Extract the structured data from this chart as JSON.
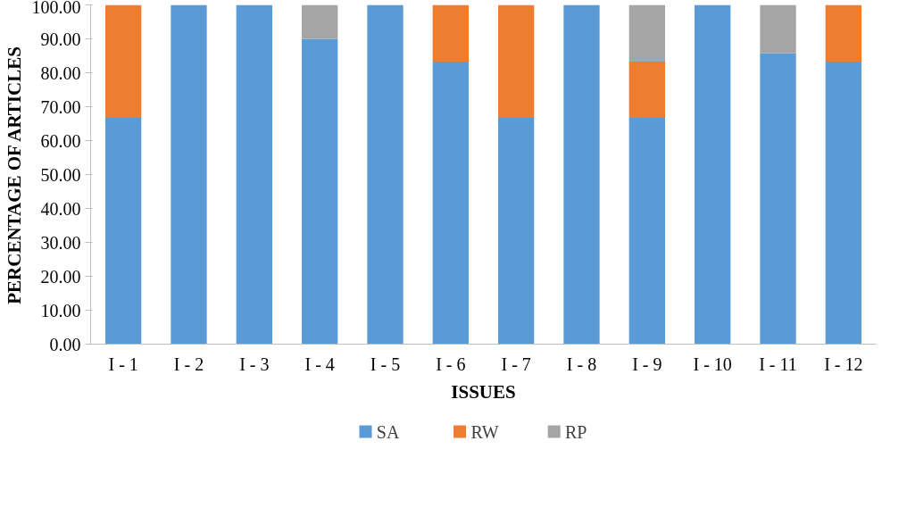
{
  "chart_data": {
    "type": "bar",
    "stacked": true,
    "xlabel": "ISSUES",
    "ylabel": "PERCENTAGE OF ARTICLES",
    "categories": [
      "I - 1",
      "I - 2",
      "I - 3",
      "I - 4",
      "I - 5",
      "I - 6",
      "I - 7",
      "I - 8",
      "I - 9",
      "I - 10",
      "I - 11",
      "I - 12"
    ],
    "series": [
      {
        "name": "SA",
        "color": "#5b9bd5",
        "values": [
          66.7,
          100,
          100,
          90,
          100,
          83.3,
          66.7,
          100,
          66.7,
          100,
          85.7,
          83.3
        ]
      },
      {
        "name": "RW",
        "color": "#ed7d31",
        "values": [
          33.3,
          0,
          0,
          0,
          0,
          16.7,
          33.3,
          0,
          16.6,
          0,
          0,
          16.7
        ]
      },
      {
        "name": "RP",
        "color": "#a5a5a5",
        "values": [
          0,
          0,
          0,
          10,
          0,
          0,
          0,
          0,
          16.7,
          0,
          14.3,
          0
        ]
      }
    ],
    "ylim": [
      0,
      100
    ],
    "yticks": [
      {
        "value": 0,
        "label": "0.00"
      },
      {
        "value": 10,
        "label": "10.00"
      },
      {
        "value": 20,
        "label": "20.00"
      },
      {
        "value": 30,
        "label": "30.00"
      },
      {
        "value": 40,
        "label": "40.00"
      },
      {
        "value": 50,
        "label": "50.00"
      },
      {
        "value": 60,
        "label": "60.00"
      },
      {
        "value": 70,
        "label": "70.00"
      },
      {
        "value": 80,
        "label": "80.00"
      },
      {
        "value": 90,
        "label": "90.00"
      },
      {
        "value": 100,
        "label": "100.00"
      }
    ],
    "grid": false,
    "legend": "bottom"
  }
}
